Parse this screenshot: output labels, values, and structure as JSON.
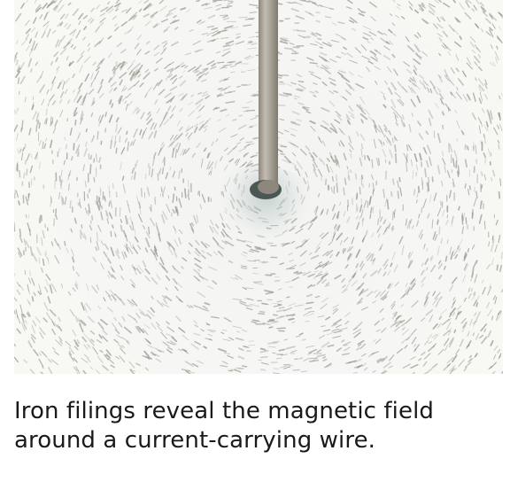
{
  "figure": {
    "caption": "Iron filings reveal the magnetic field around a current-carrying wire.",
    "colors": {
      "background": "#f6f6f3",
      "filings": "#8f8b80",
      "wire": "#a9a298",
      "wire_shadow": "#5e6a68"
    }
  }
}
